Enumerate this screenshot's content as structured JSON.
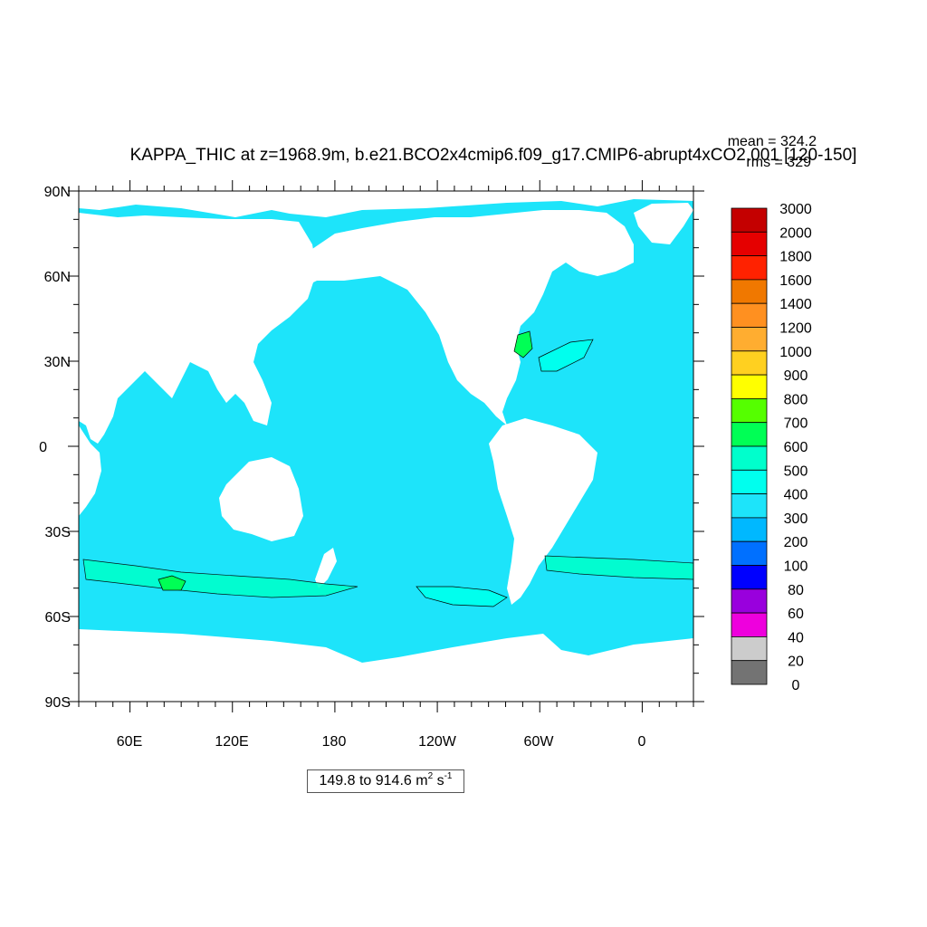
{
  "title": "KAPPA_THIC at z=1968.9m, b.e21.BCO2x4cmip6.f09_g17.CMIP6-abrupt4xCO2.001 [120-150]",
  "stats": {
    "mean": "mean = 324.2",
    "rms": "rms = 329"
  },
  "range_label": {
    "text": "149.8 to 914.6 m",
    "unit_exp1": "2",
    "mid": " s",
    "unit_exp2": "-1"
  },
  "map": {
    "projection": "cylindrical equidistant",
    "lon_range": [
      30,
      390
    ],
    "lat_range": [
      -90,
      90
    ],
    "ocean_color": "#1de4fa",
    "land_color": "#ffffff",
    "y_tick_labels": [
      "90N",
      "60N",
      "30N",
      "0",
      "30S",
      "60S",
      "90S"
    ],
    "x_tick_labels": [
      "60E",
      "120E",
      "180",
      "120W",
      "60W",
      "0"
    ]
  },
  "colorbar": {
    "levels": [
      "3000",
      "2000",
      "1800",
      "1600",
      "1400",
      "1200",
      "1000",
      "900",
      "800",
      "700",
      "600",
      "500",
      "400",
      "300",
      "200",
      "100",
      "80",
      "60",
      "40",
      "20",
      "0"
    ],
    "colors_top_to_bottom": [
      "#c40000",
      "#e50000",
      "#ff2200",
      "#f07800",
      "#ff9020",
      "#ffad30",
      "#ffd020",
      "#ffff00",
      "#55ff00",
      "#00ff55",
      "#00ffcc",
      "#00ffee",
      "#1de4fa",
      "#00b8ff",
      "#0070ff",
      "#0000ff",
      "#9900dd",
      "#ee00dd",
      "#cccccc",
      "#737373"
    ]
  }
}
